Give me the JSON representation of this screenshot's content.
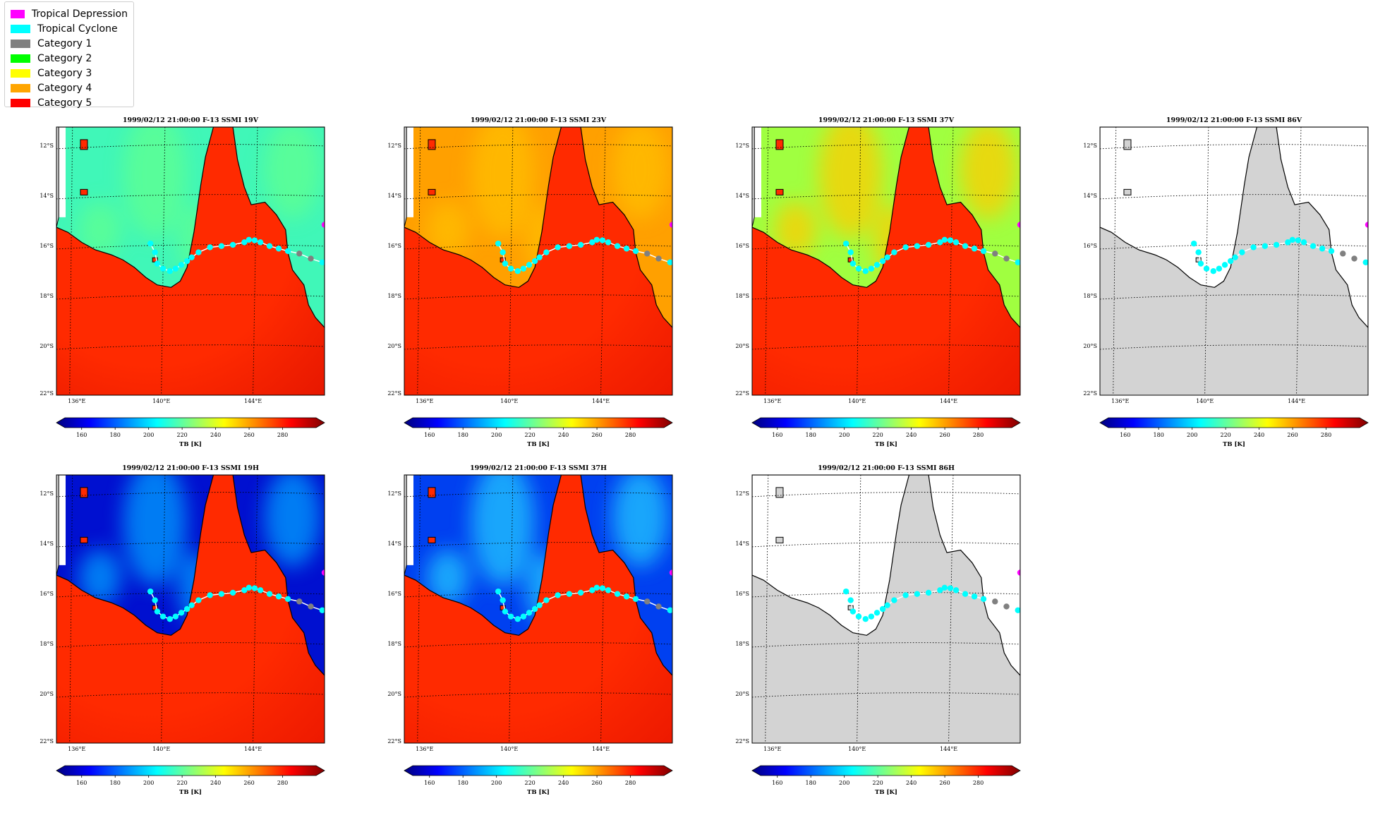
{
  "legend": [
    {
      "label": "Tropical Depression",
      "color": "#ff00ff"
    },
    {
      "label": "Tropical Cyclone",
      "color": "#00ffff"
    },
    {
      "label": "Category 1",
      "color": "#808080"
    },
    {
      "label": "Category 2",
      "color": "#00ff00"
    },
    {
      "label": "Category 3",
      "color": "#ffff00"
    },
    {
      "label": "Category 4",
      "color": "#ffa500"
    },
    {
      "label": "Category 5",
      "color": "#ff0000"
    }
  ],
  "panels": [
    {
      "title": "1999/02/12 21:00:00  F-13 SSMI 19V",
      "ocean": "#40f7b8",
      "ocean2": "#60ff90",
      "land": "#ff2a00",
      "landDeep": "#e81800",
      "nodata": false
    },
    {
      "title": "1999/02/12 21:00:00  F-13 SSMI 23V",
      "ocean": "#ffa000",
      "ocean2": "#ffbf00",
      "land": "#ff2a00",
      "landDeep": "#ee1a00",
      "nodata": false
    },
    {
      "title": "1999/02/12 21:00:00  F-13 SSMI 37V",
      "ocean": "#a0ff40",
      "ocean2": "#ffcc00",
      "land": "#ff2a00",
      "landDeep": "#ee1a00",
      "nodata": false
    },
    {
      "title": "1999/02/12 21:00:00  F-13 SSMI 86V",
      "nodata": true
    },
    {
      "title": "1999/02/12 21:00:00  F-13 SSMI 19H",
      "ocean": "#0010d0",
      "ocean2": "#00a0ff",
      "land": "#ff2a00",
      "landDeep": "#ee1a00",
      "nodata": false
    },
    {
      "title": "1999/02/12 21:00:00  F-13 SSMI 37H",
      "ocean": "#0040f0",
      "ocean2": "#20c8ff",
      "land": "#ff2a00",
      "landDeep": "#ee1a00",
      "nodata": false
    },
    {
      "title": "1999/02/12 21:00:00  F-13 SSMI 86H",
      "nodata": true
    }
  ],
  "map": {
    "lat_labels": [
      "12°S",
      "14°S",
      "16°S",
      "18°S",
      "20°S",
      "22°S"
    ],
    "lon_labels": [
      "136°E",
      "140°E",
      "144°E"
    ]
  },
  "colorbar": {
    "ticks": [
      "160",
      "180",
      "200",
      "220",
      "240",
      "260",
      "280"
    ],
    "label": "TB [K]",
    "stops": [
      "#00007f",
      "#0000ff",
      "#0080ff",
      "#00ffff",
      "#80ff80",
      "#ffff00",
      "#ff8000",
      "#ff0000",
      "#7f0000"
    ]
  },
  "track": [
    {
      "lon": 139.4,
      "lat": -15.95,
      "cat": "TC"
    },
    {
      "lon": 139.6,
      "lat": -16.3,
      "cat": "TC"
    },
    {
      "lon": 139.7,
      "lat": -16.75,
      "cat": "TC"
    },
    {
      "lon": 139.95,
      "lat": -16.95,
      "cat": "TC"
    },
    {
      "lon": 140.25,
      "lat": -17.05,
      "cat": "TC"
    },
    {
      "lon": 140.5,
      "lat": -16.95,
      "cat": "TC"
    },
    {
      "lon": 140.75,
      "lat": -16.8,
      "cat": "TC"
    },
    {
      "lon": 141.0,
      "lat": -16.65,
      "cat": "TC"
    },
    {
      "lon": 141.2,
      "lat": -16.5,
      "cat": "TC"
    },
    {
      "lon": 141.5,
      "lat": -16.3,
      "cat": "TC"
    },
    {
      "lon": 142.0,
      "lat": -16.1,
      "cat": "TC"
    },
    {
      "lon": 142.5,
      "lat": -16.05,
      "cat": "TC"
    },
    {
      "lon": 143.0,
      "lat": -16.0,
      "cat": "TC"
    },
    {
      "lon": 143.5,
      "lat": -15.9,
      "cat": "TC"
    },
    {
      "lon": 143.7,
      "lat": -15.8,
      "cat": "TC"
    },
    {
      "lon": 143.95,
      "lat": -15.82,
      "cat": "TC"
    },
    {
      "lon": 144.2,
      "lat": -15.9,
      "cat": "TC"
    },
    {
      "lon": 144.6,
      "lat": -16.05,
      "cat": "TC"
    },
    {
      "lon": 145.0,
      "lat": -16.15,
      "cat": "TC"
    },
    {
      "lon": 145.4,
      "lat": -16.25,
      "cat": "TC"
    },
    {
      "lon": 145.9,
      "lat": -16.35,
      "cat": "C1"
    },
    {
      "lon": 146.4,
      "lat": -16.55,
      "cat": "C1"
    },
    {
      "lon": 146.9,
      "lat": -16.7,
      "cat": "TC"
    },
    {
      "lon": 147.0,
      "lat": -15.2,
      "cat": "TD"
    }
  ]
}
